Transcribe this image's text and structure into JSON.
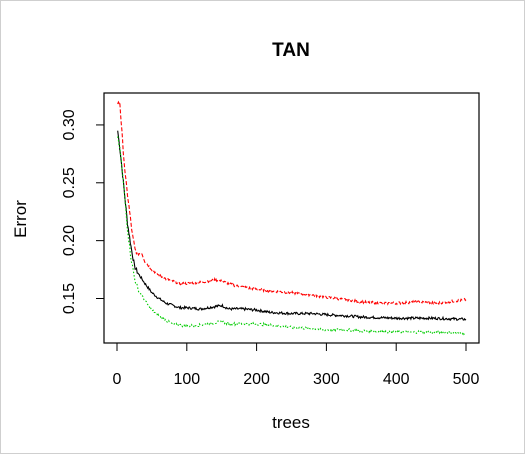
{
  "chart_data": {
    "type": "line",
    "title": "TAN",
    "xlabel": "trees",
    "ylabel": "Error",
    "xlim": [
      0,
      500
    ],
    "ylim": [
      0.115,
      0.325
    ],
    "xticks": [
      "0",
      "100",
      "200",
      "300",
      "400",
      "500"
    ],
    "yticks": [
      "0.15",
      "0.20",
      "0.25",
      "0.30"
    ],
    "grid": false,
    "legend": "none",
    "series": [
      {
        "color": "#000000",
        "line_style": "solid",
        "points": [
          [
            1,
            0.295
          ],
          [
            5,
            0.275
          ],
          [
            10,
            0.245
          ],
          [
            15,
            0.215
          ],
          [
            20,
            0.195
          ],
          [
            25,
            0.178
          ],
          [
            30,
            0.172
          ],
          [
            40,
            0.163
          ],
          [
            50,
            0.155
          ],
          [
            60,
            0.15
          ],
          [
            70,
            0.146
          ],
          [
            80,
            0.144
          ],
          [
            90,
            0.142
          ],
          [
            100,
            0.142
          ],
          [
            120,
            0.141
          ],
          [
            140,
            0.143
          ],
          [
            150,
            0.144
          ],
          [
            160,
            0.141
          ],
          [
            180,
            0.141
          ],
          [
            200,
            0.14
          ],
          [
            220,
            0.138
          ],
          [
            250,
            0.137
          ],
          [
            280,
            0.137
          ],
          [
            300,
            0.136
          ],
          [
            330,
            0.135
          ],
          [
            350,
            0.134
          ],
          [
            400,
            0.133
          ],
          [
            450,
            0.133
          ],
          [
            500,
            0.132
          ]
        ]
      },
      {
        "color": "#ff0000",
        "line_style": "dashed",
        "points": [
          [
            1,
            0.318
          ],
          [
            4,
            0.32
          ],
          [
            8,
            0.285
          ],
          [
            12,
            0.255
          ],
          [
            18,
            0.225
          ],
          [
            22,
            0.205
          ],
          [
            26,
            0.192
          ],
          [
            30,
            0.188
          ],
          [
            35,
            0.19
          ],
          [
            40,
            0.182
          ],
          [
            50,
            0.175
          ],
          [
            60,
            0.17
          ],
          [
            70,
            0.167
          ],
          [
            80,
            0.165
          ],
          [
            90,
            0.163
          ],
          [
            100,
            0.163
          ],
          [
            120,
            0.164
          ],
          [
            140,
            0.166
          ],
          [
            150,
            0.165
          ],
          [
            170,
            0.161
          ],
          [
            200,
            0.158
          ],
          [
            230,
            0.156
          ],
          [
            250,
            0.155
          ],
          [
            280,
            0.153
          ],
          [
            300,
            0.151
          ],
          [
            330,
            0.149
          ],
          [
            350,
            0.147
          ],
          [
            380,
            0.146
          ],
          [
            400,
            0.146
          ],
          [
            430,
            0.147
          ],
          [
            460,
            0.146
          ],
          [
            500,
            0.149
          ]
        ]
      },
      {
        "color": "#00cc00",
        "line_style": "dotted",
        "points": [
          [
            1,
            0.29
          ],
          [
            5,
            0.275
          ],
          [
            10,
            0.245
          ],
          [
            15,
            0.21
          ],
          [
            20,
            0.185
          ],
          [
            25,
            0.168
          ],
          [
            30,
            0.158
          ],
          [
            40,
            0.148
          ],
          [
            50,
            0.14
          ],
          [
            60,
            0.135
          ],
          [
            70,
            0.131
          ],
          [
            80,
            0.128
          ],
          [
            90,
            0.127
          ],
          [
            100,
            0.126
          ],
          [
            120,
            0.127
          ],
          [
            140,
            0.129
          ],
          [
            150,
            0.13
          ],
          [
            160,
            0.128
          ],
          [
            180,
            0.128
          ],
          [
            200,
            0.128
          ],
          [
            220,
            0.127
          ],
          [
            250,
            0.125
          ],
          [
            280,
            0.124
          ],
          [
            300,
            0.123
          ],
          [
            330,
            0.123
          ],
          [
            350,
            0.122
          ],
          [
            400,
            0.121
          ],
          [
            450,
            0.121
          ],
          [
            500,
            0.12
          ]
        ]
      }
    ]
  }
}
